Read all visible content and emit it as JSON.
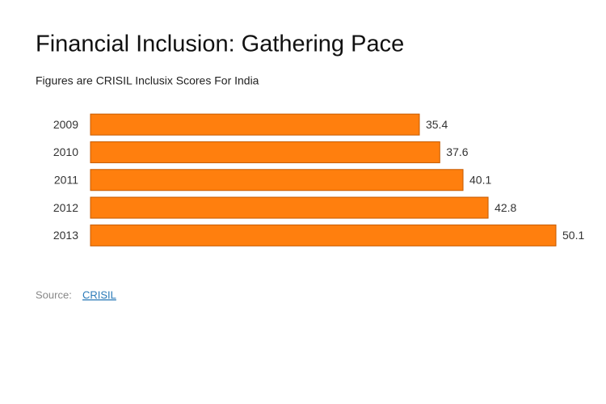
{
  "chart_data": {
    "type": "bar",
    "orientation": "horizontal",
    "title": "Financial Inclusion: Gathering Pace",
    "subtitle": "Figures are CRISIL Inclusix Scores For India",
    "categories": [
      "2009",
      "2010",
      "2011",
      "2012",
      "2013"
    ],
    "values": [
      35.4,
      37.6,
      40.1,
      42.8,
      50.1
    ],
    "color": "#ff7f0e"
  },
  "source": {
    "label": "Source:",
    "link": "CRISIL"
  }
}
